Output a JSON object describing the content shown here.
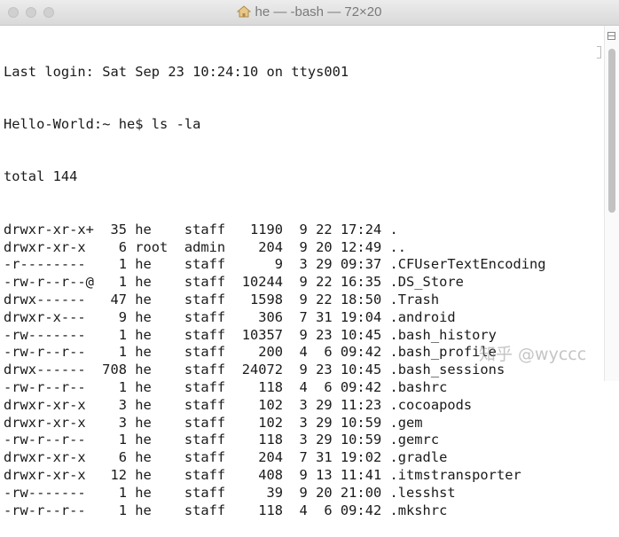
{
  "window": {
    "title": "he — -bash — 72×20",
    "title_icon": "home-icon"
  },
  "terminal": {
    "last_login": "Last login: Sat Sep 23 10:24:10 on ttys001",
    "prompt": "Hello-World:~ he$ ls -la",
    "total": "total 144",
    "rows": [
      [
        "drwxr-xr-x+",
        "35",
        "he",
        "staff",
        "1190",
        "9",
        "22",
        "17:24",
        "."
      ],
      [
        "drwxr-xr-x",
        "6",
        "root",
        "admin",
        "204",
        "9",
        "20",
        "12:49",
        ".."
      ],
      [
        "-r--------",
        "1",
        "he",
        "staff",
        "9",
        "3",
        "29",
        "09:37",
        ".CFUserTextEncoding"
      ],
      [
        "-rw-r--r--@",
        "1",
        "he",
        "staff",
        "10244",
        "9",
        "22",
        "16:35",
        ".DS_Store"
      ],
      [
        "drwx------",
        "47",
        "he",
        "staff",
        "1598",
        "9",
        "22",
        "18:50",
        ".Trash"
      ],
      [
        "drwxr-x---",
        "9",
        "he",
        "staff",
        "306",
        "7",
        "31",
        "19:04",
        ".android"
      ],
      [
        "-rw-------",
        "1",
        "he",
        "staff",
        "10357",
        "9",
        "23",
        "10:45",
        ".bash_history"
      ],
      [
        "-rw-r--r--",
        "1",
        "he",
        "staff",
        "200",
        "4",
        "6",
        "09:42",
        ".bash_profile"
      ],
      [
        "drwx------",
        "708",
        "he",
        "staff",
        "24072",
        "9",
        "23",
        "10:45",
        ".bash_sessions"
      ],
      [
        "-rw-r--r--",
        "1",
        "he",
        "staff",
        "118",
        "4",
        "6",
        "09:42",
        ".bashrc"
      ],
      [
        "drwxr-xr-x",
        "3",
        "he",
        "staff",
        "102",
        "3",
        "29",
        "11:23",
        ".cocoapods"
      ],
      [
        "drwxr-xr-x",
        "3",
        "he",
        "staff",
        "102",
        "3",
        "29",
        "10:59",
        ".gem"
      ],
      [
        "-rw-r--r--",
        "1",
        "he",
        "staff",
        "118",
        "3",
        "29",
        "10:59",
        ".gemrc"
      ],
      [
        "drwxr-xr-x",
        "6",
        "he",
        "staff",
        "204",
        "7",
        "31",
        "19:02",
        ".gradle"
      ],
      [
        "drwxr-xr-x",
        "12",
        "he",
        "staff",
        "408",
        "9",
        "13",
        "11:41",
        ".itmstransporter"
      ],
      [
        "-rw-------",
        "1",
        "he",
        "staff",
        "39",
        "9",
        "20",
        "21:00",
        ".lesshst"
      ],
      [
        "-rw-r--r--",
        "1",
        "he",
        "staff",
        "118",
        "4",
        "6",
        "09:42",
        ".mkshrc"
      ]
    ]
  },
  "watermark": "知乎 @wyccc"
}
